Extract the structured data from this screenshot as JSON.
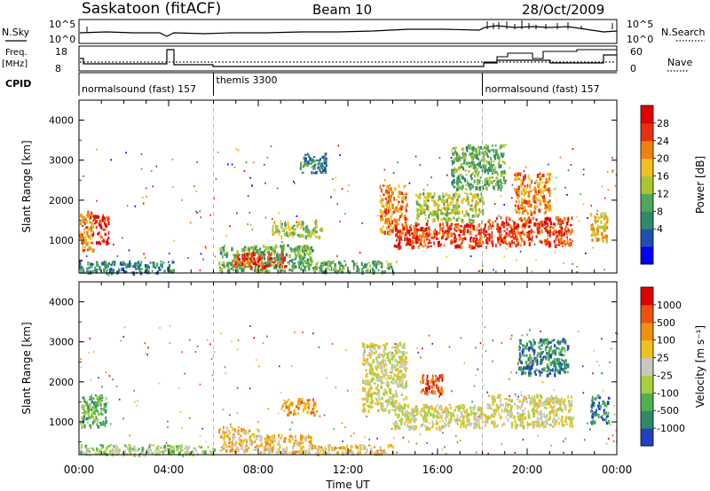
{
  "header": {
    "station": "Saskatoon (fitACF)",
    "beam": "Beam 10",
    "date": "28/Oct/2009"
  },
  "top_panels": {
    "nsky_label": "N.Sky",
    "nsky_ticks": [
      "10^5",
      "10^0"
    ],
    "nsearch_label": "N.Search",
    "nsearch_ticks": [
      "10^5",
      "10^0"
    ],
    "freq_label_1": "Freq.",
    "freq_label_2": "[MHz]",
    "freq_ticks": [
      "18",
      "8"
    ],
    "nave_label": "Nave",
    "nave_ticks": [
      "60",
      "0"
    ],
    "cpid_label": "CPID",
    "cpid_segments": [
      {
        "label": "normalsound (fast) 157",
        "start_hour": 0
      },
      {
        "label": "themis 3300",
        "start_hour": 6
      },
      {
        "label": "normalsound (fast) 157",
        "start_hour": 18
      }
    ]
  },
  "chart_data": [
    {
      "type": "heatmap",
      "name": "power",
      "ylabel": "Slant Range [km]",
      "yticks": [
        "4000",
        "3000",
        "2000",
        "1000"
      ],
      "ylim": [
        180,
        4500
      ],
      "xlim": [
        0,
        24
      ],
      "colorbar_label": "Power [dB]",
      "colorbar_ticks": [
        "28",
        "24",
        "20",
        "16",
        "12",
        "8",
        "4"
      ],
      "colors": [
        "#0000ff",
        "#1f4fb0",
        "#2f8a6a",
        "#4fa75a",
        "#a8c632",
        "#f0c020",
        "#f08010",
        "#e83010",
        "#e00000"
      ],
      "regions": [
        {
          "t": [
            0.0,
            0.6
          ],
          "r": [
            750,
            1750
          ],
          "level": 6
        },
        {
          "t": [
            0.6,
            1.3
          ],
          "r": [
            900,
            1650
          ],
          "level": 7
        },
        {
          "t": [
            0.0,
            4.2
          ],
          "r": [
            200,
            500
          ],
          "level": 2
        },
        {
          "t": [
            6.2,
            10.4
          ],
          "r": [
            250,
            900
          ],
          "level": 3
        },
        {
          "t": [
            6.8,
            9.2
          ],
          "r": [
            350,
            700
          ],
          "level": 7
        },
        {
          "t": [
            8.6,
            10.8
          ],
          "r": [
            1100,
            1500
          ],
          "level": 4
        },
        {
          "t": [
            9.8,
            11.0
          ],
          "r": [
            2700,
            3200
          ],
          "level": 2
        },
        {
          "t": [
            10.4,
            14.0
          ],
          "r": [
            220,
            500
          ],
          "level": 3
        },
        {
          "t": [
            13.4,
            14.6
          ],
          "r": [
            1200,
            2400
          ],
          "level": 6
        },
        {
          "t": [
            14.0,
            18.2
          ],
          "r": [
            850,
            1450
          ],
          "level": 7
        },
        {
          "t": [
            15.0,
            18.0
          ],
          "r": [
            1500,
            2200
          ],
          "level": 4
        },
        {
          "t": [
            16.6,
            19.0
          ],
          "r": [
            2300,
            3400
          ],
          "level": 3
        },
        {
          "t": [
            18.2,
            22.0
          ],
          "r": [
            900,
            1600
          ],
          "level": 7
        },
        {
          "t": [
            19.4,
            21.0
          ],
          "r": [
            1700,
            2700
          ],
          "level": 6
        },
        {
          "t": [
            22.8,
            23.6
          ],
          "r": [
            1000,
            1700
          ],
          "level": 5
        }
      ]
    },
    {
      "type": "heatmap",
      "name": "velocity",
      "ylabel": "Slant Range [km]",
      "yticks": [
        "4000",
        "3000",
        "2000",
        "1000"
      ],
      "ylim": [
        180,
        4500
      ],
      "xlim": [
        0,
        24
      ],
      "xticks": [
        "00:00",
        "04:00",
        "08:00",
        "12:00",
        "16:00",
        "20:00",
        "00:00"
      ],
      "xlabel": "Time UT",
      "colorbar_label": "Velocity [m s⁻¹]",
      "colorbar_ticks": [
        "1000",
        "500",
        "100",
        "25",
        "-25",
        "-100",
        "-500",
        "-1000"
      ],
      "colors": [
        "#2040c0",
        "#2f8a6a",
        "#4fb050",
        "#a8d040",
        "#c8c8c0",
        "#f0c020",
        "#f09010",
        "#f05010",
        "#e00000"
      ],
      "regions": [
        {
          "t": [
            0.0,
            1.2
          ],
          "r": [
            900,
            1700
          ],
          "level": 2
        },
        {
          "t": [
            0.0,
            6.0
          ],
          "r": [
            200,
            450
          ],
          "level": 3
        },
        {
          "t": [
            6.2,
            8.0
          ],
          "r": [
            300,
            900
          ],
          "level": 5
        },
        {
          "t": [
            8.0,
            10.4
          ],
          "r": [
            250,
            700
          ],
          "level": 5
        },
        {
          "t": [
            9.0,
            10.6
          ],
          "r": [
            1200,
            1600
          ],
          "level": 6
        },
        {
          "t": [
            10.4,
            14.0
          ],
          "r": [
            220,
            450
          ],
          "level": 5
        },
        {
          "t": [
            12.6,
            14.6
          ],
          "r": [
            1300,
            3000
          ],
          "level": 4
        },
        {
          "t": [
            14.0,
            18.2
          ],
          "r": [
            850,
            1450
          ],
          "level": 4
        },
        {
          "t": [
            15.2,
            16.2
          ],
          "r": [
            1700,
            2200
          ],
          "level": 7
        },
        {
          "t": [
            18.2,
            22.0
          ],
          "r": [
            900,
            1700
          ],
          "level": 4
        },
        {
          "t": [
            19.6,
            21.8
          ],
          "r": [
            2200,
            3100
          ],
          "level": 1
        },
        {
          "t": [
            22.8,
            23.6
          ],
          "r": [
            1000,
            1700
          ],
          "level": 1
        }
      ]
    }
  ]
}
